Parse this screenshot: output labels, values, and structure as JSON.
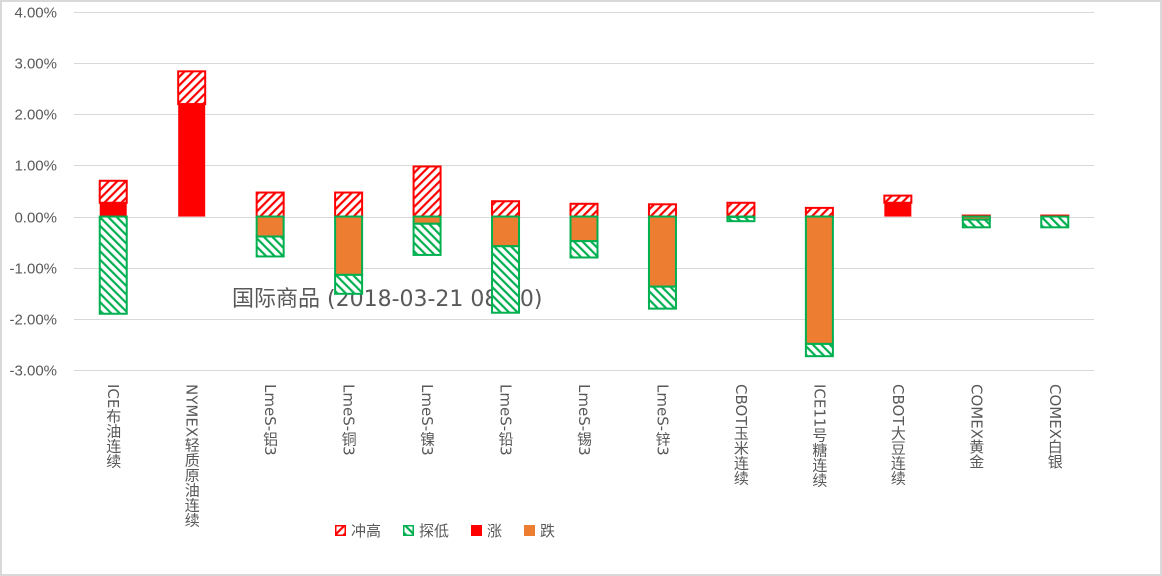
{
  "chart_data": {
    "type": "bar",
    "stacked": true,
    "title": "",
    "annotation": "国际商品 (2018-03-21 08:40)",
    "xlabel": "",
    "ylabel": "",
    "ylim": [
      -0.03,
      0.04
    ],
    "yticks": [
      "4.00%",
      "3.00%",
      "2.00%",
      "1.00%",
      "0.00%",
      "-1.00%",
      "-2.00%",
      "-3.00%"
    ],
    "ytick_values": [
      0.04,
      0.03,
      0.02,
      0.01,
      0.0,
      -0.01,
      -0.02,
      -0.03
    ],
    "grid": true,
    "legend_position": "bottom",
    "categories": [
      "ICE布油连续",
      "NYMEX轻质原油连续",
      "LmeS-铝3",
      "LmeS-铜3",
      "LmeS-镍3",
      "LmeS-铅3",
      "LmeS-锡3",
      "LmeS-锌3",
      "CBOT玉米连续",
      "ICE11号糖连续",
      "CBOT大豆连续",
      "COMEX黄金",
      "COMEX白银"
    ],
    "high": [
      0.007,
      0.0284,
      0.0047,
      0.0047,
      0.0098,
      0.003,
      0.0025,
      0.0024,
      0.0027,
      0.0017,
      0.0041,
      0.0002,
      0.0002
    ],
    "close": [
      0.0027,
      0.022,
      -0.0039,
      -0.0114,
      -0.0014,
      -0.0058,
      -0.0048,
      -0.0137,
      -0.0001,
      -0.0249,
      0.0027,
      -0.0006,
      0.0001
    ],
    "low": [
      -0.019,
      0.0,
      -0.0078,
      -0.0151,
      -0.0075,
      -0.0188,
      -0.008,
      -0.018,
      -0.0009,
      -0.0273,
      0.0,
      -0.0021,
      -0.0021
    ],
    "series": [
      {
        "name": "冲高",
        "key": "high_part",
        "color": "#ff0000",
        "pattern": "hatch-up"
      },
      {
        "name": "探低",
        "key": "low_part",
        "color": "#00b050",
        "pattern": "hatch-down"
      },
      {
        "name": "涨",
        "key": "rise",
        "color": "#ff0000",
        "pattern": "solid"
      },
      {
        "name": "跌",
        "key": "fall",
        "color": "#ed7d31",
        "pattern": "solid"
      }
    ]
  },
  "legend": {
    "items": [
      "冲高",
      "探低",
      "涨",
      "跌"
    ]
  }
}
